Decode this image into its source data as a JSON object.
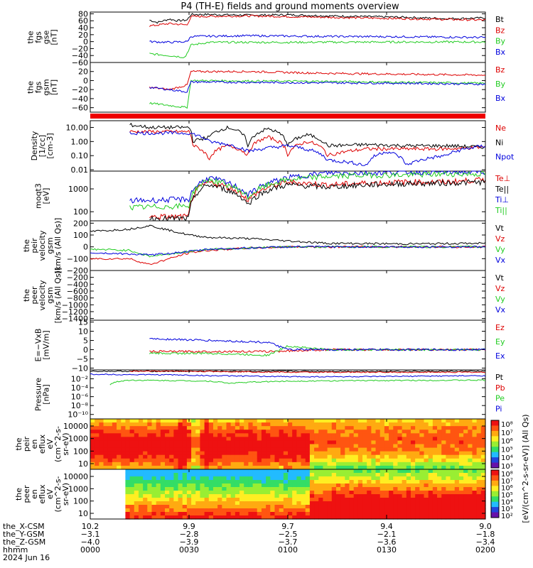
{
  "title": "P4 (TH-E) fields and ground moments overview",
  "colors": {
    "black": "#000000",
    "red": "#dd0000",
    "green": "#22cc22",
    "blue": "#0000dd"
  },
  "chart_data": [
    {
      "type": "line",
      "ylabel": [
        "the",
        "fgs",
        "gse",
        "[nT]"
      ],
      "ylim": [
        -60,
        85
      ],
      "yticks": [
        "80",
        "60",
        "40",
        "20",
        "0",
        "−20",
        "−40",
        "−60"
      ],
      "ytick_values": [
        80,
        60,
        40,
        20,
        0,
        -20,
        -40,
        -60
      ],
      "series": [
        {
          "name": "Bt",
          "color": "black",
          "x": [
            0.15,
            0.17,
            0.2,
            0.22,
            0.245,
            0.255,
            0.3,
            0.4,
            0.5,
            0.6,
            0.7,
            0.8,
            0.9,
            1.0
          ],
          "y": [
            62,
            55,
            65,
            60,
            62,
            78,
            78,
            76,
            77,
            74,
            72,
            70,
            66,
            68
          ]
        },
        {
          "name": "Bz",
          "color": "red",
          "x": [
            0.15,
            0.2,
            0.245,
            0.255,
            0.4,
            0.6,
            0.8,
            1.0
          ],
          "y": [
            45,
            52,
            48,
            72,
            74,
            70,
            66,
            62
          ]
        },
        {
          "name": "By",
          "color": "green",
          "x": [
            0.15,
            0.2,
            0.24,
            0.255,
            0.3,
            0.5,
            0.8,
            1.0
          ],
          "y": [
            -35,
            -40,
            -45,
            -10,
            -2,
            -2,
            -1,
            -1
          ]
        },
        {
          "name": "Bx",
          "color": "blue",
          "x": [
            0.15,
            0.2,
            0.245,
            0.255,
            0.4,
            0.6,
            0.8,
            1.0
          ],
          "y": [
            0,
            -2,
            0,
            15,
            17,
            15,
            14,
            12
          ]
        }
      ]
    },
    {
      "type": "line",
      "ylabel": [
        "the",
        "fgs",
        "gsm",
        "[nT]"
      ],
      "ylim": [
        -70,
        40
      ],
      "yticks": [
        "20",
        "0",
        "−20",
        "−40",
        "−60"
      ],
      "ytick_values": [
        20,
        0,
        -20,
        -40,
        -60
      ],
      "series": [
        {
          "name": "Bz",
          "color": "red",
          "x": [
            0.15,
            0.2,
            0.245,
            0.255,
            0.4,
            0.6,
            0.8,
            1.0
          ],
          "y": [
            -15,
            -20,
            -10,
            20,
            20,
            16,
            14,
            12
          ]
        },
        {
          "name": "By",
          "color": "green",
          "x": [
            0.15,
            0.2,
            0.245,
            0.255,
            0.4,
            0.6,
            0.8,
            1.0
          ],
          "y": [
            -50,
            -55,
            -60,
            0,
            -1,
            -2,
            -4,
            -6
          ]
        },
        {
          "name": "Bx",
          "color": "blue",
          "x": [
            0.15,
            0.2,
            0.245,
            0.255,
            0.4,
            0.6,
            0.8,
            1.0
          ],
          "y": [
            -15,
            -20,
            -25,
            -3,
            -4,
            -5,
            -6,
            -8
          ]
        }
      ]
    },
    {
      "type": "line",
      "ylabel": [
        "Density",
        "[1/cc]",
        "[cm-3]"
      ],
      "yscale": "log",
      "ylim": [
        0.008,
        30
      ],
      "yticks": [
        "10.00",
        "1.00",
        "0.10",
        "0.01"
      ],
      "ytick_values": [
        10,
        1,
        0.1,
        0.01
      ],
      "series": [
        {
          "name": "Ne",
          "color": "red",
          "x": [
            0.1,
            0.25,
            0.26,
            0.3,
            0.35,
            0.4,
            0.45,
            0.5,
            0.55,
            0.6,
            0.7,
            0.8,
            0.9,
            1.0
          ],
          "y": [
            5,
            5,
            0.5,
            0.05,
            0.5,
            0.1,
            2,
            0.1,
            1,
            0.1,
            0.3,
            0.3,
            0.3,
            0.4
          ]
        },
        {
          "name": "Ni",
          "color": "black",
          "x": [
            0.1,
            0.15,
            0.25,
            0.26,
            0.3,
            0.35,
            0.4,
            0.45,
            0.5,
            0.55,
            0.6,
            0.7,
            0.8,
            0.9,
            1.0
          ],
          "y": [
            15,
            10,
            10,
            1,
            2,
            10,
            0.3,
            8,
            0.5,
            3,
            0.5,
            0.6,
            0.5,
            0.5,
            0.4
          ]
        },
        {
          "name": "Npot",
          "color": "blue",
          "x": [
            0.1,
            0.25,
            0.3,
            0.4,
            0.5,
            0.6,
            0.7,
            0.75,
            0.8,
            0.9,
            1.0
          ],
          "y": [
            4,
            4,
            1,
            0.2,
            0.5,
            0.05,
            0.02,
            0.2,
            0.02,
            0.1,
            0.5
          ]
        }
      ]
    },
    {
      "type": "line",
      "ylabel": [
        "moqt3",
        "[eV]"
      ],
      "yscale": "log",
      "ylim": [
        40,
        6000
      ],
      "yticks": [
        "1000",
        "100"
      ],
      "ytick_values": [
        1000,
        100
      ],
      "series": [
        {
          "name": "Te⊥",
          "color": "red",
          "x": [
            0.15,
            0.25,
            0.3,
            0.4,
            0.5,
            0.6,
            0.7,
            0.8,
            0.9,
            1.0
          ],
          "y": [
            60,
            60,
            2000,
            300,
            2000,
            1500,
            1800,
            2000,
            2000,
            2500
          ]
        },
        {
          "name": "Te||",
          "color": "black",
          "x": [
            0.15,
            0.25,
            0.3,
            0.4,
            0.5,
            0.6,
            0.7,
            0.8,
            0.9,
            1.0
          ],
          "y": [
            50,
            50,
            1500,
            200,
            1500,
            1200,
            1500,
            1700,
            1800,
            2000
          ]
        },
        {
          "name": "Ti⊥",
          "color": "blue",
          "x": [
            0.1,
            0.25,
            0.3,
            0.4,
            0.5,
            0.6,
            0.7,
            0.8,
            0.9,
            1.0
          ],
          "y": [
            300,
            350,
            3000,
            500,
            3000,
            5000,
            5000,
            5500,
            5500,
            5500
          ]
        },
        {
          "name": "Ti||",
          "color": "green",
          "x": [
            0.1,
            0.25,
            0.3,
            0.4,
            0.5,
            0.6,
            0.7,
            0.8,
            0.9,
            1.0
          ],
          "y": [
            150,
            180,
            2500,
            400,
            2500,
            3500,
            4000,
            4000,
            4500,
            4500
          ]
        }
      ]
    },
    {
      "type": "line",
      "ylabel": [
        "the",
        "peir",
        "velocity",
        "gsm",
        "[km/s (All Qs)]"
      ],
      "ylim": [
        -200,
        220
      ],
      "yticks": [
        "200",
        "100",
        "0",
        "−100",
        "−200"
      ],
      "ytick_values": [
        200,
        100,
        0,
        -100,
        -200
      ],
      "series": [
        {
          "name": "Vt",
          "color": "black",
          "x": [
            0.0,
            0.1,
            0.15,
            0.25,
            0.3,
            0.4,
            0.5,
            0.6,
            0.8,
            1.0
          ],
          "y": [
            130,
            150,
            180,
            100,
            80,
            70,
            50,
            30,
            25,
            30
          ]
        },
        {
          "name": "Vz",
          "color": "red",
          "x": [
            0.0,
            0.1,
            0.15,
            0.25,
            0.3,
            0.4,
            0.5,
            0.6,
            0.8,
            1.0
          ],
          "y": [
            -100,
            -100,
            -150,
            -50,
            -30,
            -10,
            0,
            0,
            0,
            0
          ]
        },
        {
          "name": "Vy",
          "color": "green",
          "x": [
            0.0,
            0.1,
            0.15,
            0.25,
            0.3,
            0.4,
            0.5,
            0.6,
            0.8,
            1.0
          ],
          "y": [
            -20,
            -30,
            -80,
            -40,
            -20,
            -10,
            0,
            0,
            0,
            0
          ]
        },
        {
          "name": "Vx",
          "color": "blue",
          "x": [
            0.0,
            0.1,
            0.15,
            0.25,
            0.3,
            0.4,
            0.5,
            0.6,
            0.8,
            1.0
          ],
          "y": [
            -50,
            -60,
            -70,
            -40,
            -20,
            -10,
            0,
            0,
            0,
            0
          ]
        }
      ]
    },
    {
      "type": "line",
      "ylabel": [
        "the",
        "peer",
        "velocity",
        "gsm",
        "[km/s (All Qs)]"
      ],
      "ylim": [
        -1450,
        0
      ],
      "yticks": [
        "−200",
        "−400",
        "−600",
        "−800",
        "−1000",
        "−1200",
        "−1400"
      ],
      "ytick_values": [
        -200,
        -400,
        -600,
        -800,
        -1000,
        -1200,
        -1400
      ],
      "series": [
        {
          "name": "Vt",
          "color": "black",
          "x": [],
          "y": []
        },
        {
          "name": "Vz",
          "color": "red",
          "x": [],
          "y": []
        },
        {
          "name": "Vy",
          "color": "green",
          "x": [],
          "y": []
        },
        {
          "name": "Vx",
          "color": "blue",
          "x": [],
          "y": []
        }
      ]
    },
    {
      "type": "line",
      "ylabel": [
        "E=−VxB",
        "[mV/m]"
      ],
      "ylim": [
        -11,
        16
      ],
      "yticks": [
        "15",
        "10",
        "5",
        "0",
        "−5",
        "−10"
      ],
      "ytick_values": [
        15,
        10,
        5,
        0,
        -5,
        -10
      ],
      "series": [
        {
          "name": "Ez",
          "color": "red",
          "x": [
            0.15,
            0.3,
            0.45,
            0.6,
            0.8,
            1.0
          ],
          "y": [
            -1,
            -1,
            -1,
            0,
            0,
            0
          ]
        },
        {
          "name": "Ey",
          "color": "green",
          "x": [
            0.15,
            0.3,
            0.45,
            0.5,
            0.6,
            0.8,
            1.0
          ],
          "y": [
            -2,
            -2,
            -3,
            2,
            0,
            0,
            0
          ]
        },
        {
          "name": "Ex",
          "color": "blue",
          "x": [
            0.15,
            0.3,
            0.45,
            0.5,
            0.6,
            0.8,
            1.0
          ],
          "y": [
            6,
            5,
            4,
            0,
            0,
            0,
            0
          ]
        }
      ]
    },
    {
      "type": "line",
      "ylabel": [
        "Pressure",
        "[nPa]"
      ],
      "yscale": "log",
      "ylim": [
        1e-11,
        1
      ],
      "yticks": [
        "10⁻²",
        "10⁻⁴",
        "10⁻⁶",
        "10⁻⁸",
        "10⁻¹⁰"
      ],
      "ytick_values": [
        0.01,
        0.0001,
        1e-06,
        1e-08,
        1e-10
      ],
      "series": [
        {
          "name": "Pt",
          "color": "black",
          "x": [
            0.0,
            0.2,
            0.5,
            1.0
          ],
          "y": [
            0.5,
            0.5,
            0.5,
            0.5
          ]
        },
        {
          "name": "Pb",
          "color": "red",
          "x": [
            0.1,
            0.25,
            0.5,
            1.0
          ],
          "y": [
            0.5,
            0.5,
            0.3,
            0.3
          ]
        },
        {
          "name": "Pe",
          "color": "green",
          "x": [
            0.05,
            0.1,
            0.3,
            0.35,
            0.5,
            0.7,
            1.0
          ],
          "y": [
            0.0005,
            0.005,
            0.003,
            0.001,
            0.003,
            0.004,
            0.005
          ]
        },
        {
          "name": "Pi",
          "color": "blue",
          "x": [
            0.0,
            0.2,
            0.3,
            0.5,
            0.7,
            1.0
          ],
          "y": [
            0.1,
            0.08,
            0.05,
            0.03,
            0.03,
            0.05
          ]
        }
      ]
    },
    {
      "type": "heatmap",
      "ylabel": [
        "the",
        "peir",
        "en",
        "eflux",
        "eV",
        "(cm^2-s-",
        "sr-eV)"
      ],
      "yscale": "log",
      "yticks": [
        "10000",
        "1000",
        "100",
        "10"
      ]
    },
    {
      "type": "heatmap",
      "ylabel": [
        "the",
        "peer",
        "en",
        "eflux",
        "eV",
        "(cm^2-s-",
        "sr-eV)"
      ],
      "yscale": "log",
      "yticks": [
        "10000",
        "1000",
        "100",
        "10"
      ]
    }
  ],
  "colorbar": {
    "label": "[eV/(cm^2-s-sr-eV)] (All Qs)",
    "ticks_top": [
      "10⁸",
      "10⁷",
      "10⁶",
      "10⁵",
      "10⁴",
      "10³"
    ],
    "ticks_bottom": [
      "10⁸",
      "10⁷",
      "10⁶",
      "10⁵",
      "10⁴",
      "10³",
      "10²"
    ]
  },
  "xaxis": {
    "row_labels": [
      "the_X-CSM",
      "the_Y-GSM",
      "the_Z-GSM",
      "hhmm",
      "2024 Jun 16"
    ],
    "columns": [
      {
        "x": "10.2",
        "y": "−3.1",
        "z": "−4.0",
        "t": "0000"
      },
      {
        "x": "9.9",
        "y": "−2.8",
        "z": "−3.9",
        "t": "0030"
      },
      {
        "x": "9.7",
        "y": "−2.5",
        "z": "−3.7",
        "t": "0100"
      },
      {
        "x": "9.4",
        "y": "−2.1",
        "z": "−3.6",
        "t": "0130"
      },
      {
        "x": "9.0",
        "y": "−1.8",
        "z": "−3.4",
        "t": "0200"
      }
    ]
  }
}
